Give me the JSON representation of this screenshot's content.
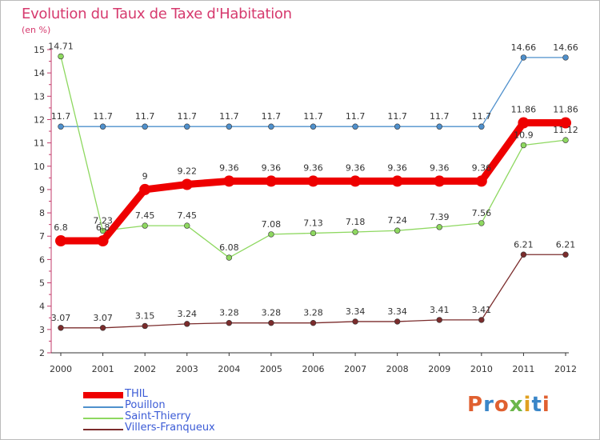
{
  "title": "Evolution du Taux de Taxe d'Habitation",
  "subtitle": "(en %)",
  "chart_data": {
    "type": "line",
    "title": "Evolution du Taux de Taxe d'Habitation",
    "ylabel": "(en %)",
    "xlabel": "",
    "x": [
      "2000",
      "2001",
      "2002",
      "2003",
      "2004",
      "2005",
      "2006",
      "2007",
      "2008",
      "2009",
      "2010",
      "2011",
      "2012"
    ],
    "ylim": [
      2,
      15
    ],
    "yticks": [
      "2",
      "3",
      "4",
      "5",
      "6",
      "7",
      "8",
      "9",
      "10",
      "11",
      "12",
      "13",
      "14",
      "15"
    ],
    "grid": false,
    "legend": "bottom-left",
    "series": [
      {
        "name": "Pouillon",
        "color": "#4f90cc",
        "values": [
          11.7,
          11.7,
          11.7,
          11.7,
          11.7,
          11.7,
          11.7,
          11.7,
          11.7,
          11.7,
          11.7,
          14.66,
          14.66
        ],
        "labels": [
          "11.7",
          "11.7",
          "11.7",
          "11.7",
          "11.7",
          "11.7",
          "11.7",
          "11.7",
          "11.7",
          "11.7",
          "11.7",
          "14.66",
          "14.66"
        ]
      },
      {
        "name": "Saint-Thierry",
        "color": "#8ed860",
        "values": [
          14.71,
          7.23,
          7.45,
          7.45,
          6.08,
          7.08,
          7.13,
          7.18,
          7.24,
          7.39,
          7.56,
          10.9,
          11.12
        ],
        "labels": [
          "14.71",
          "7.23",
          "7.45",
          "7.45",
          "6.08",
          "7.08",
          "7.13",
          "7.18",
          "7.24",
          "7.39",
          "7.56",
          "10.9",
          "11.12"
        ]
      },
      {
        "name": "Villers-Franqueux",
        "color": "#7b2c2c",
        "values": [
          3.07,
          3.07,
          3.15,
          3.24,
          3.28,
          3.28,
          3.28,
          3.34,
          3.34,
          3.41,
          3.41,
          6.21,
          6.21
        ],
        "labels": [
          "3.07",
          "3.07",
          "3.15",
          "3.24",
          "3.28",
          "3.28",
          "3.28",
          "3.34",
          "3.34",
          "3.41",
          "3.41",
          "6.21",
          "6.21"
        ]
      },
      {
        "name": "THIL",
        "color": "#ee0000",
        "values": [
          6.8,
          6.8,
          9,
          9.22,
          9.36,
          9.36,
          9.36,
          9.36,
          9.36,
          9.36,
          9.36,
          11.86,
          11.86
        ],
        "labels": [
          "6.8",
          "6.8",
          "9",
          "9.22",
          "9.36",
          "9.36",
          "9.36",
          "9.36",
          "9.36",
          "9.36",
          "9.36",
          "11.86",
          "11.86"
        ]
      }
    ]
  },
  "legend": {
    "items": [
      {
        "name": "THIL",
        "color": "#ee0000"
      },
      {
        "name": "Pouillon",
        "color": "#4f90cc"
      },
      {
        "name": "Saint-Thierry",
        "color": "#8ed860"
      },
      {
        "name": "Villers-Franqueux",
        "color": "#7b2c2c"
      }
    ]
  },
  "logo": {
    "text": "Proxiti"
  }
}
